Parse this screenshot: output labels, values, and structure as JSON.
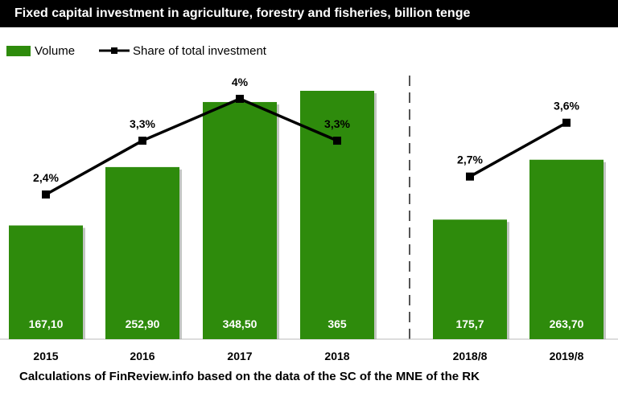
{
  "title": "Fixed capital investment in agriculture, forestry and fisheries, billion tenge",
  "footer": "Calculations of  FinReview.info based on the data of the SC of the MNE of the RK",
  "legend": {
    "volume_label": "Volume",
    "share_label": "Share of total investment"
  },
  "colors": {
    "bar": "#2e8b0c",
    "line": "#000000",
    "title_bg": "#000000"
  },
  "chart_data": [
    {
      "type": "bar",
      "categories": [
        "2015",
        "2016",
        "2017",
        "2018"
      ],
      "series": [
        {
          "name": "Volume",
          "values": [
            167.1,
            252.9,
            348.5,
            365
          ],
          "labels": [
            "167,10",
            "252,90",
            "348,50",
            "365"
          ]
        },
        {
          "name": "Share of total investment",
          "type": "line",
          "values": [
            2.4,
            3.3,
            4.0,
            3.3
          ],
          "labels": [
            "2,4%",
            "3,3%",
            "4%",
            "3,3%"
          ]
        }
      ]
    },
    {
      "type": "bar",
      "categories": [
        "2018/8",
        "2019/8"
      ],
      "series": [
        {
          "name": "Volume",
          "values": [
            175.7,
            263.7
          ],
          "labels": [
            "175,7",
            "263,70"
          ]
        },
        {
          "name": "Share of total investment",
          "type": "line",
          "values": [
            2.7,
            3.6
          ],
          "labels": [
            "2,7%",
            "3,6%"
          ]
        }
      ]
    }
  ]
}
